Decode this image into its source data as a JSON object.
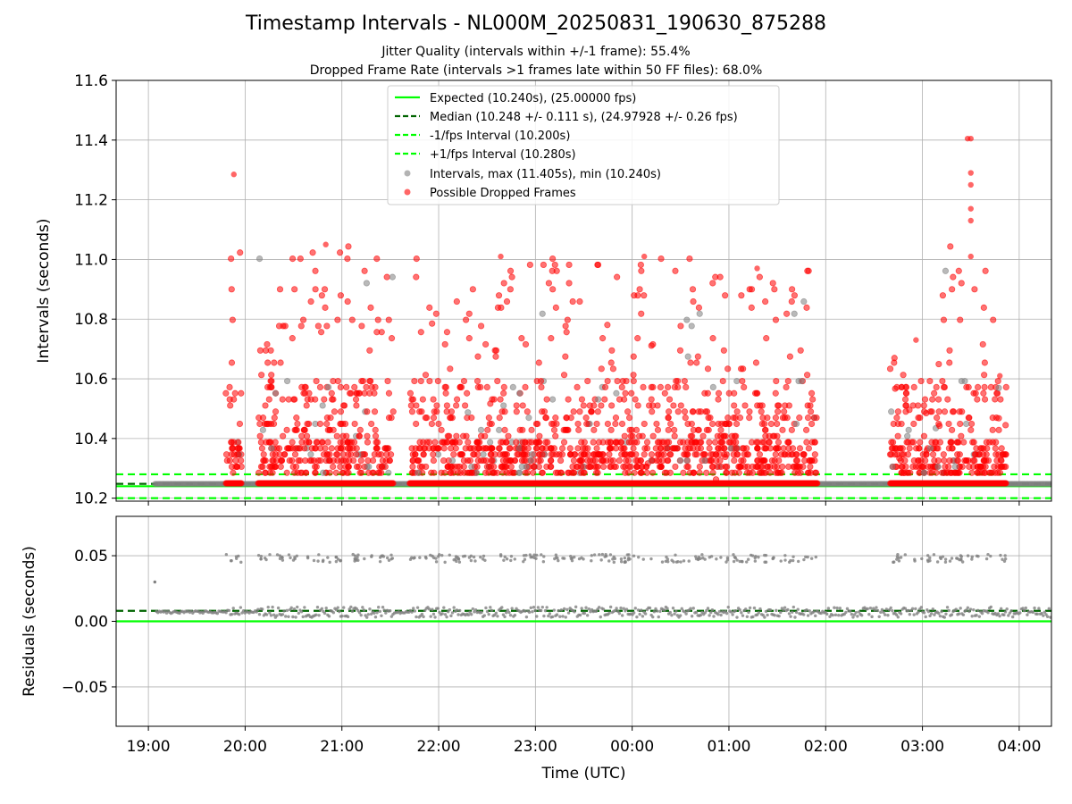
{
  "chart_data": [
    {
      "type": "scatter",
      "panel": "intervals",
      "title": "Timestamp Intervals - NL000M_20250831_190630_875288",
      "subtitle_lines": [
        "Jitter Quality (intervals within +/-1 frame): 55.4%",
        "Dropped Frame Rate (intervals >1 frames late within 50 FF files): 68.0%"
      ],
      "xlabel": "",
      "ylabel": "Intervals (seconds)",
      "ylim": [
        10.19,
        11.6
      ],
      "yticks": [
        "10.2",
        "10.4",
        "10.6",
        "10.8",
        "11.0",
        "11.2",
        "11.4",
        "11.6"
      ],
      "ytick_values": [
        10.2,
        10.4,
        10.6,
        10.8,
        11.0,
        11.2,
        11.4,
        11.6
      ],
      "grid": true,
      "legend_position": "upper-center",
      "reference_lines": [
        {
          "name": "Expected (10.240s), (25.00000 fps)",
          "value": 10.24,
          "style": "solid",
          "color": "#00ff00"
        },
        {
          "name": "Median (10.248 +/- 0.111 s), (24.97928 +/- 0.26 fps)",
          "value": 10.248,
          "style": "dashed",
          "color": "#006400"
        },
        {
          "name": "-1/fps Interval (10.200s)",
          "value": 10.2,
          "style": "dashed",
          "color": "#00ff00"
        },
        {
          "name": "+1/fps Interval (10.280s)",
          "value": 10.28,
          "style": "dashed",
          "color": "#00ff00"
        }
      ],
      "series": [
        {
          "name": "Intervals, max (11.405s), min (10.240s)",
          "color": "#808080",
          "marker": "circle"
        },
        {
          "name": "Possible Dropped Frames",
          "color": "#ff0000",
          "marker": "circle"
        }
      ],
      "clusters": [
        {
          "start": "19:48",
          "end": "19:58",
          "max": 11.285
        },
        {
          "start": "20:08",
          "end": "21:32",
          "max": 11.05
        },
        {
          "start": "21:42",
          "end": "23:35",
          "max": 11.01
        },
        {
          "start": "23:35",
          "end": "00:40",
          "max": 11.01
        },
        {
          "start": "00:40",
          "end": "01:55",
          "max": 10.97
        },
        {
          "start": "02:40",
          "end": "03:12",
          "max": 10.73
        },
        {
          "start": "03:12",
          "end": "03:44",
          "max": 11.405
        },
        {
          "start": "03:44",
          "end": "03:52",
          "max": 10.61
        }
      ]
    },
    {
      "type": "scatter",
      "panel": "residuals",
      "xlabel": "Time (UTC)",
      "ylabel": "Residuals (seconds)",
      "ylim": [
        -0.08,
        0.08
      ],
      "yticks": [
        "−0.05",
        "0.00",
        "0.05"
      ],
      "ytick_values": [
        -0.05,
        0.0,
        0.05
      ],
      "grid": true,
      "reference_lines": [
        {
          "value": 0.0,
          "style": "solid",
          "color": "#00ff00"
        },
        {
          "value": 0.008,
          "style": "dashed",
          "color": "#006400"
        }
      ],
      "series": [
        {
          "color": "#808080",
          "marker": "dot",
          "band_value": 0.007,
          "outlier_value": 0.048
        }
      ]
    }
  ],
  "x_axis": {
    "start": "18:40",
    "end": "04:20",
    "tick_labels": [
      "19:00",
      "20:00",
      "21:00",
      "22:00",
      "23:00",
      "00:00",
      "01:00",
      "02:00",
      "03:00",
      "04:00"
    ]
  }
}
